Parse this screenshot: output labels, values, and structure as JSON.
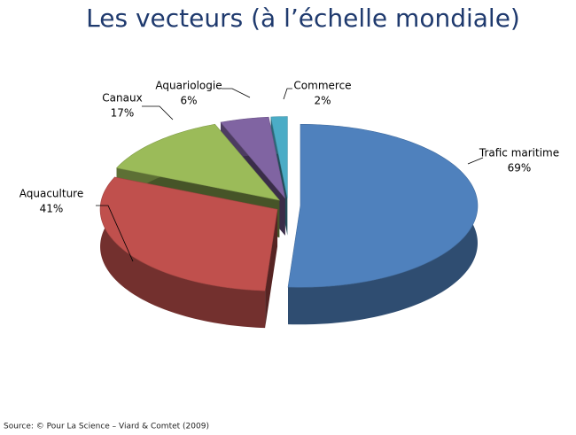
{
  "chart_data": {
    "type": "pie",
    "title": "Les vecteurs (à l’échelle mondiale)",
    "categories": [
      "Trafic maritime",
      "Aquaculture",
      "Canaux",
      "Aquariologie",
      "Commerce"
    ],
    "values": [
      69,
      41,
      17,
      6,
      2
    ],
    "value_labels": [
      "69%",
      "41%",
      "17%",
      "6%",
      "2%"
    ],
    "colors": [
      "#4f81bd",
      "#c0504d",
      "#9bbb59",
      "#8064a2",
      "#4bacc6"
    ],
    "source": "Source: © Pour La Science – Viard & Comtet (2009)"
  }
}
